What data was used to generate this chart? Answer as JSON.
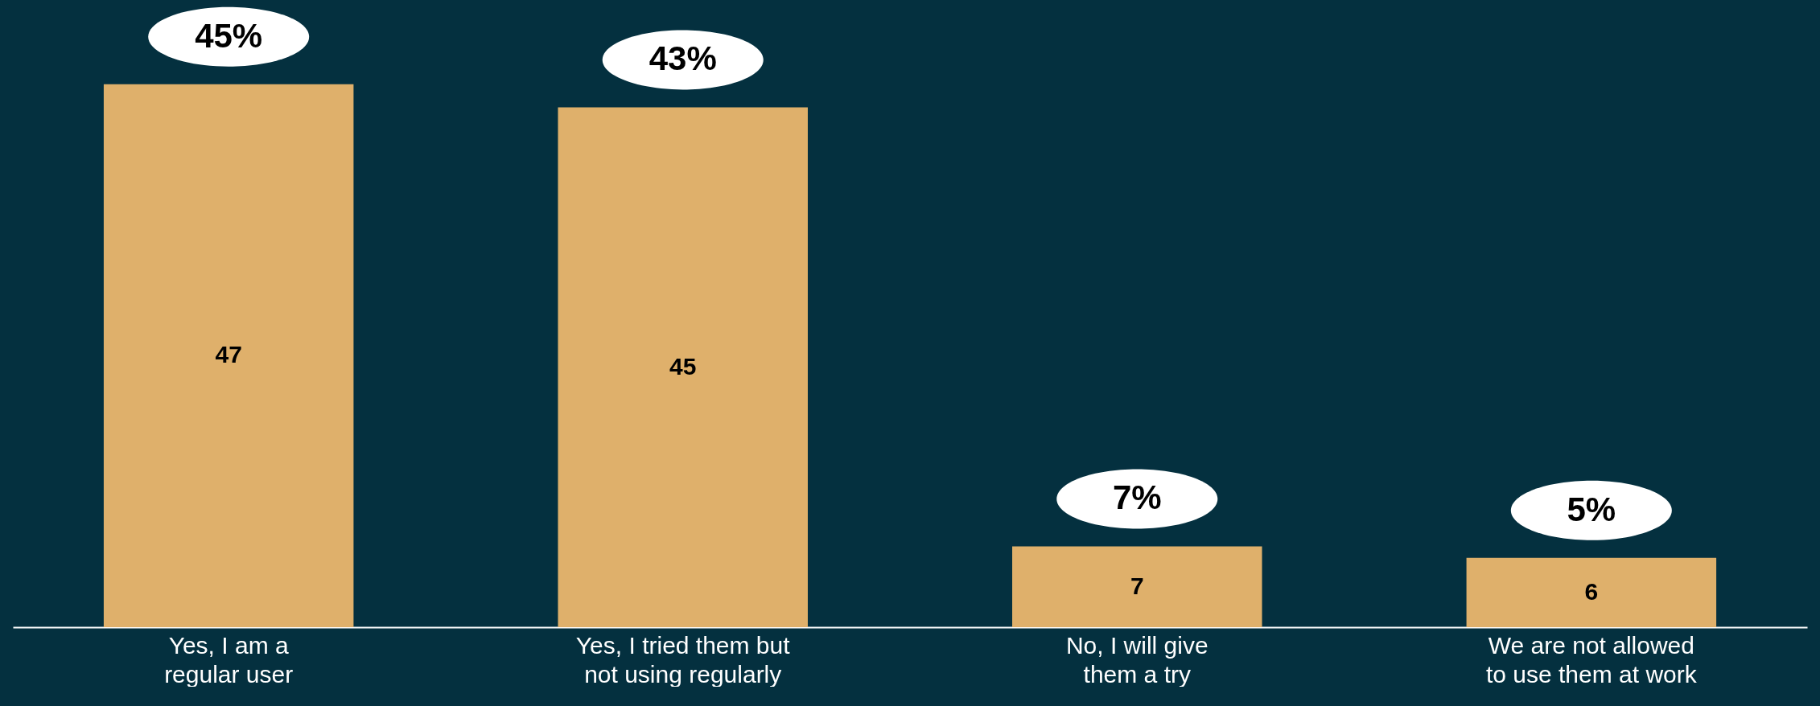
{
  "chart_data": {
    "type": "bar",
    "categories": [
      "Yes, I am a regular user",
      "Yes, I tried them but not using regularly",
      "No, I will give them a try",
      "We are not allowed to use them at work"
    ],
    "values": [
      47,
      45,
      7,
      6
    ],
    "color": "#dfb06b",
    "data_labels": true,
    "grid": false,
    "annotations": [
      {
        "text": "45%",
        "x": "Yes, I am a regular user",
        "y": 47
      },
      {
        "text": "43%",
        "x": "Yes, I tried them but not using regularly",
        "y": 45
      },
      {
        "text": "7%",
        "x": "No, I will give them a try",
        "y": 7
      },
      {
        "text": "5%",
        "x": "We are not allowed to use them at work",
        "y": 6
      }
    ]
  }
}
